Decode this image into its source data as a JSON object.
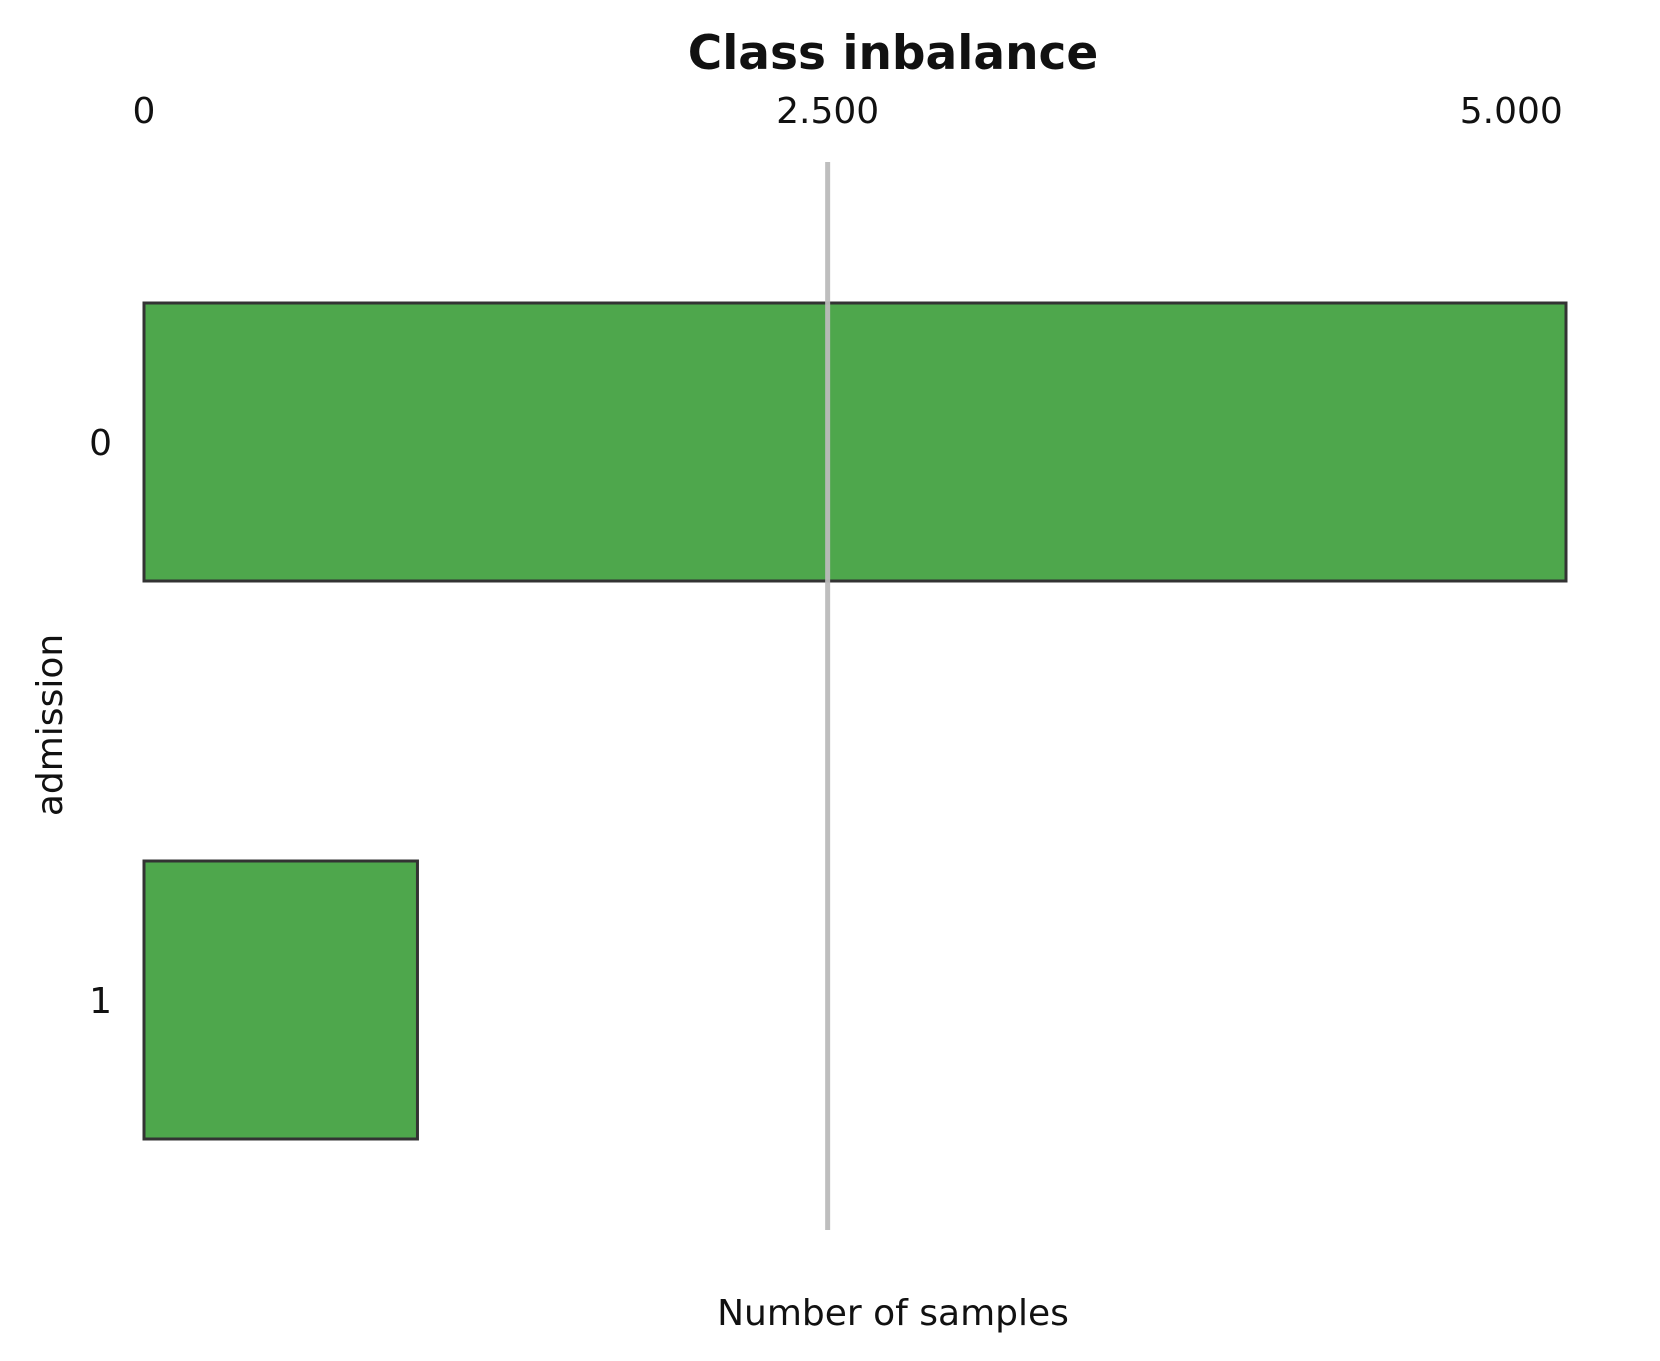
{
  "chart_data": {
    "type": "bar",
    "orientation": "horizontal",
    "title": "Class inbalance",
    "xlabel": "Number of samples",
    "ylabel": "admission",
    "categories": [
      "0",
      "1"
    ],
    "values": [
      5200,
      1000
    ],
    "xlim": [
      0,
      5200
    ],
    "xticks": [
      0,
      2500,
      5000
    ],
    "xtick_labels": [
      "0",
      "2.500",
      "5.000"
    ],
    "xaxis_position": "top",
    "reference_line_x": 2500,
    "grid": false,
    "legend": "none",
    "colors": {
      "bar_fill": "#4ea74c",
      "bar_edge": "#333333",
      "reference_line": "#bbbbbb",
      "text": "#111111"
    }
  }
}
